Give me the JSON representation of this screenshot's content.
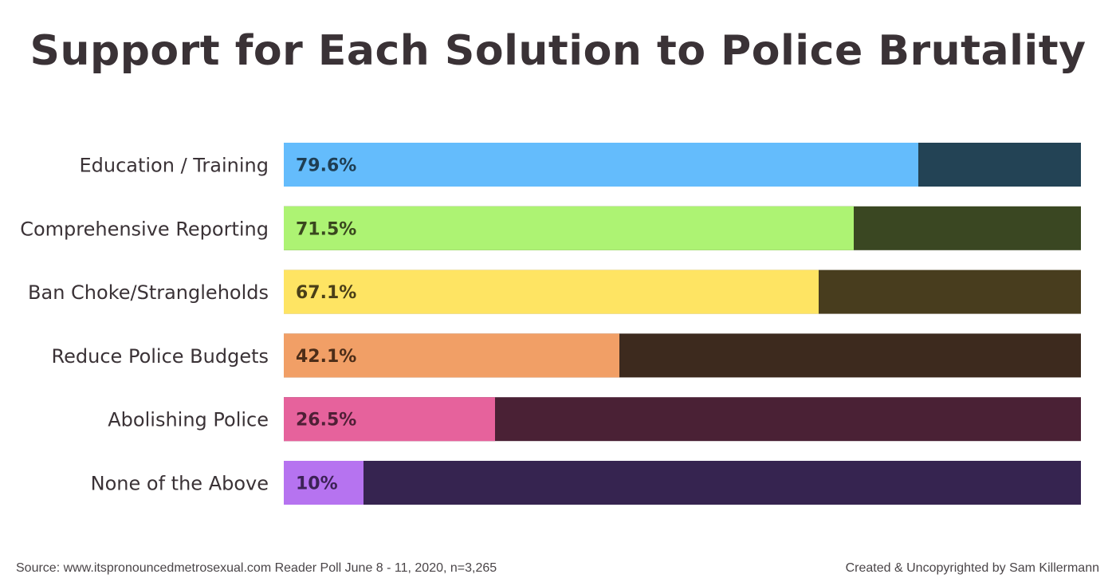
{
  "chart_data": {
    "type": "bar",
    "orientation": "horizontal",
    "stacked_remainder": true,
    "title": "Support for Each Solution to Police Brutality",
    "xlabel": "",
    "ylabel": "",
    "xlim": [
      0,
      100
    ],
    "categories": [
      "Education / Training",
      "Comprehensive Reporting",
      "Ban Choke/Strangleholds",
      "Reduce Police Budgets",
      "Abolishing Police",
      "None of the Above"
    ],
    "values": [
      79.6,
      71.5,
      67.1,
      42.1,
      26.5,
      10
    ],
    "value_labels": [
      "79.6%",
      "71.5%",
      "67.1%",
      "42.1%",
      "26.5%",
      "10%"
    ],
    "colors": {
      "fill": [
        "#64bcfc",
        "#adf373",
        "#fee463",
        "#f19f66",
        "#e6629c",
        "#b673f0"
      ],
      "remainder": [
        "#234355",
        "#3a4722",
        "#483d1e",
        "#3d2a1e",
        "#4a2135",
        "#362450"
      ],
      "label_text": [
        "#1f3e53",
        "#39471e",
        "#4a3f18",
        "#4c2d18",
        "#4f1f36",
        "#3c2256"
      ]
    },
    "grid": false,
    "legend": "none"
  },
  "footer": {
    "source": "Source: www.itspronouncedmetrosexual.com Reader Poll June 8 - 11, 2020, n=3,265",
    "credit": "Created & Uncopyrighted by Sam Killermann"
  }
}
